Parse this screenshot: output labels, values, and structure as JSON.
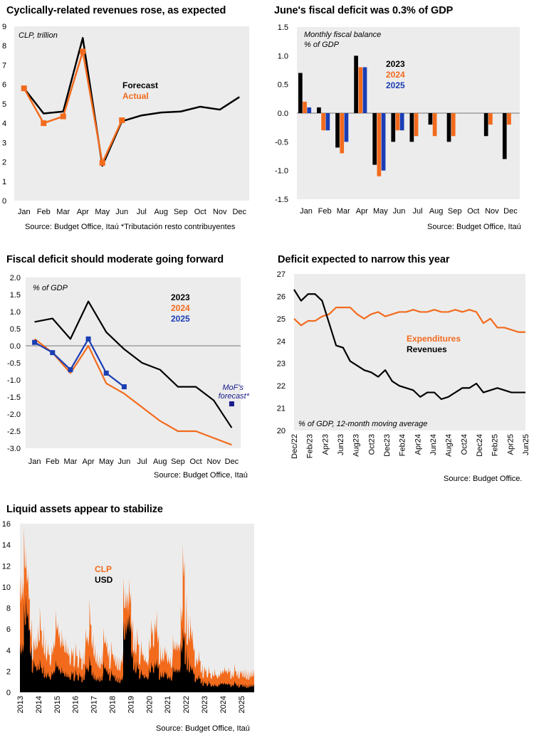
{
  "chart_data": [
    {
      "id": "c1",
      "type": "line",
      "title": "Cyclically-related revenues rose, as expected",
      "annotation": "CLP, trillion",
      "source": "Source: Budget Office, Itaú  *Tributación resto contribuyentes",
      "categories": [
        "Jan",
        "Feb",
        "Mar",
        "Apr",
        "May",
        "Jun",
        "Jul",
        "Aug",
        "Sep",
        "Oct",
        "Nov",
        "Dec"
      ],
      "ylim": [
        0,
        9
      ],
      "yticks": [
        0,
        1,
        2,
        3,
        4,
        5,
        6,
        7,
        8,
        9
      ],
      "series": [
        {
          "name": "Forecast",
          "color": "#000000",
          "values": [
            5.8,
            4.5,
            4.6,
            8.4,
            1.8,
            4.1,
            4.4,
            4.55,
            4.6,
            4.85,
            4.7,
            5.35
          ]
        },
        {
          "name": "Actual",
          "color": "#f26b1d",
          "values": [
            5.8,
            4.0,
            4.35,
            7.7,
            1.95,
            4.15,
            null,
            null,
            null,
            null,
            null,
            null
          ]
        }
      ]
    },
    {
      "id": "c2",
      "type": "bar",
      "title": "June's fiscal deficit was 0.3% of GDP",
      "annotation": [
        "Monthly fiscal balance",
        "% of GDP"
      ],
      "source": "Source: Budget Office, Itaú",
      "categories": [
        "Jan",
        "Feb",
        "Mar",
        "Apr",
        "May",
        "Jun",
        "Jul",
        "Aug",
        "Sep",
        "Oct",
        "Nov",
        "Dec"
      ],
      "ylim": [
        -1.5,
        1.5
      ],
      "yticks": [
        1.5,
        1.0,
        0.5,
        0.0,
        -0.5,
        -1.0,
        -1.5
      ],
      "series": [
        {
          "name": "2023",
          "color": "#000000",
          "values": [
            0.7,
            0.1,
            -0.6,
            1.0,
            -0.9,
            -0.5,
            -0.5,
            -0.2,
            -0.5,
            0.0,
            -0.4,
            -0.8
          ]
        },
        {
          "name": "2024",
          "color": "#f26b1d",
          "values": [
            0.2,
            -0.3,
            -0.7,
            0.8,
            -1.1,
            -0.3,
            -0.4,
            -0.4,
            -0.4,
            0.0,
            -0.2,
            -0.2
          ]
        },
        {
          "name": "2025",
          "color": "#1a3db4",
          "values": [
            0.1,
            -0.3,
            -0.5,
            0.8,
            -1.0,
            -0.3,
            null,
            null,
            null,
            null,
            null,
            null
          ]
        }
      ]
    },
    {
      "id": "c3",
      "type": "line",
      "title": "Fiscal deficit should moderate going forward",
      "annotation": "% of GDP",
      "source": "Source: Budget Office, Itaú",
      "categories": [
        "Jan",
        "Feb",
        "Mar",
        "Apr",
        "May",
        "Jun",
        "Jul",
        "Aug",
        "Sep",
        "Oct",
        "Nov",
        "Dec"
      ],
      "ylim": [
        -3.0,
        2.0
      ],
      "yticks": [
        2.0,
        1.5,
        1.0,
        0.5,
        0.0,
        -0.5,
        -1.0,
        -1.5,
        -2.0,
        -2.5,
        -3.0
      ],
      "series": [
        {
          "name": "2023",
          "color": "#000000",
          "values": [
            0.7,
            0.8,
            0.2,
            1.3,
            0.4,
            -0.1,
            -0.5,
            -0.7,
            -1.2,
            -1.2,
            -1.6,
            -2.4
          ]
        },
        {
          "name": "2024",
          "color": "#f26b1d",
          "values": [
            0.2,
            -0.2,
            -0.8,
            0.0,
            -1.1,
            -1.4,
            -1.8,
            -2.2,
            -2.5,
            -2.5,
            -2.7,
            -2.9
          ]
        },
        {
          "name": "2025",
          "color": "#1a3db4",
          "values": [
            0.1,
            -0.2,
            -0.7,
            0.2,
            -0.8,
            -1.2,
            null,
            null,
            null,
            null,
            null,
            null
          ]
        }
      ],
      "forecast_point": {
        "label": [
          "MoF's",
          "forecast*"
        ],
        "month": "Dec",
        "value": -1.7,
        "color": "#1a1a8c"
      }
    },
    {
      "id": "c4",
      "type": "line",
      "title": "Deficit expected to narrow this year",
      "annotation": "% of GDP, 12-month moving average",
      "source": "Source: Budget Office.",
      "ylim": [
        20,
        27
      ],
      "yticks": [
        27,
        26,
        25,
        24,
        23,
        22,
        21,
        20
      ],
      "xticks": [
        "Dec/22",
        "Feb/23",
        "Apr23",
        "Jun23",
        "Aug23",
        "Oct23",
        "Dec23",
        "Feb24",
        "Apr24",
        "Jun24",
        "Aug24",
        "Oct24",
        "Dec24",
        "Feb25",
        "Apr25",
        "Jun25"
      ],
      "series": [
        {
          "name": "Expenditures",
          "color": "#f26b1d",
          "values": [
            25.0,
            24.7,
            24.9,
            24.9,
            25.1,
            25.2,
            25.5,
            25.5,
            25.5,
            25.2,
            25.0,
            25.2,
            25.3,
            25.1,
            25.2,
            25.3,
            25.3,
            25.4,
            25.3,
            25.3,
            25.4,
            25.3,
            25.3,
            25.4,
            25.3,
            25.4,
            25.3,
            24.8,
            25.0,
            24.6,
            24.6,
            24.5,
            24.4,
            24.4
          ]
        },
        {
          "name": "Revenues",
          "color": "#000000",
          "values": [
            26.3,
            25.8,
            26.1,
            26.1,
            25.8,
            24.8,
            23.8,
            23.7,
            23.1,
            22.9,
            22.7,
            22.6,
            22.4,
            22.7,
            22.2,
            22.0,
            21.9,
            21.8,
            21.5,
            21.7,
            21.7,
            21.4,
            21.5,
            21.7,
            21.9,
            21.9,
            22.1,
            21.7,
            21.8,
            21.9,
            21.8,
            21.7,
            21.7,
            21.7
          ]
        }
      ]
    },
    {
      "id": "c5",
      "type": "area",
      "title": "Liquid assets appear to stabilize",
      "source": "Source: Budget Office, Itaú",
      "ylim": [
        0,
        16
      ],
      "yticks": [
        0,
        2,
        4,
        6,
        8,
        10,
        12,
        14,
        16
      ],
      "xticks": [
        "2013",
        "2014",
        "2015",
        "2016",
        "2017",
        "2018",
        "2019",
        "2020",
        "2021",
        "2022",
        "2023",
        "2024",
        "2025"
      ],
      "x_range": [
        2013.0,
        2025.7
      ],
      "series": [
        {
          "name": "CLP",
          "color": "#f26b1d",
          "values": [
            9.5,
            10.5,
            12.0,
            11.0,
            9.0,
            7.0,
            5.0,
            4.2,
            4.5,
            5.0,
            5.8,
            6.3,
            5.2,
            4.0,
            3.6,
            3.8,
            4.5,
            5.8,
            6.3,
            5.8,
            4.9,
            4.4,
            3.8,
            3.6,
            3.7,
            4.0,
            4.2,
            3.8,
            3.4,
            3.5,
            3.3,
            3.8,
            4.6,
            5.4,
            6.0,
            6.3,
            5.6,
            4.6,
            3.8,
            3.5,
            3.6,
            4.5,
            4.8,
            4.8,
            4.1,
            3.7,
            3.6,
            3.6,
            3.5,
            3.4,
            3.3,
            3.9,
            8.0,
            9.5,
            9.8,
            9.5,
            7.0,
            5.5,
            5.0,
            4.5,
            4.2,
            3.5,
            3.1,
            3.0,
            3.4,
            4.4,
            6.2,
            7.0,
            7.8,
            5.5,
            4.5,
            4.2,
            4.3,
            4.0,
            3.6,
            3.4,
            3.8,
            4.2,
            4.6,
            4.7,
            5.2,
            8.0,
            12.5,
            9.5,
            7.5,
            7.3,
            6.0,
            4.2,
            3.4,
            3.2,
            3.0,
            2.7,
            2.5,
            2.2,
            1.9,
            1.8,
            1.7,
            1.6,
            1.6,
            1.5,
            1.8,
            2.0,
            2.2,
            2.1,
            2.0,
            2.1,
            2.0,
            1.9,
            2.0,
            2.1,
            2.0,
            2.1,
            2.2,
            2.2,
            2.1,
            2.1,
            2.2,
            2.2
          ]
        },
        {
          "name": "USD",
          "color": "#000000",
          "values": [
            4.0,
            4.5,
            6.5,
            7.5,
            6.0,
            4.5,
            3.0,
            2.5,
            2.2,
            2.2,
            2.3,
            2.6,
            2.0,
            1.8,
            1.5,
            1.8,
            2.0,
            2.5,
            2.5,
            2.3,
            2.0,
            1.8,
            1.5,
            1.4,
            1.5,
            1.8,
            2.0,
            1.7,
            1.6,
            1.7,
            1.5,
            1.7,
            2.0,
            2.4,
            2.6,
            2.5,
            2.0,
            1.7,
            1.5,
            1.6,
            1.6,
            1.9,
            2.3,
            2.2,
            2.0,
            1.8,
            1.6,
            1.7,
            1.5,
            1.5,
            1.4,
            1.6,
            5.0,
            6.5,
            7.5,
            6.5,
            4.0,
            3.0,
            2.5,
            2.2,
            2.0,
            1.6,
            1.4,
            1.5,
            1.6,
            2.0,
            2.6,
            3.0,
            3.2,
            2.6,
            2.0,
            2.0,
            2.0,
            1.9,
            1.6,
            1.6,
            1.8,
            2.0,
            2.2,
            2.2,
            2.5,
            4.5,
            5.5,
            4.5,
            3.5,
            2.8,
            2.4,
            1.8,
            1.4,
            1.4,
            1.3,
            1.2,
            1.1,
            0.9,
            0.8,
            0.8,
            0.7,
            0.6,
            0.6,
            0.6,
            0.8,
            0.9,
            0.9,
            0.8,
            0.8,
            0.8,
            0.8,
            0.8,
            0.8,
            0.8,
            0.7,
            0.8,
            0.8,
            0.8,
            0.7,
            0.8,
            0.8,
            0.8
          ]
        }
      ]
    }
  ]
}
